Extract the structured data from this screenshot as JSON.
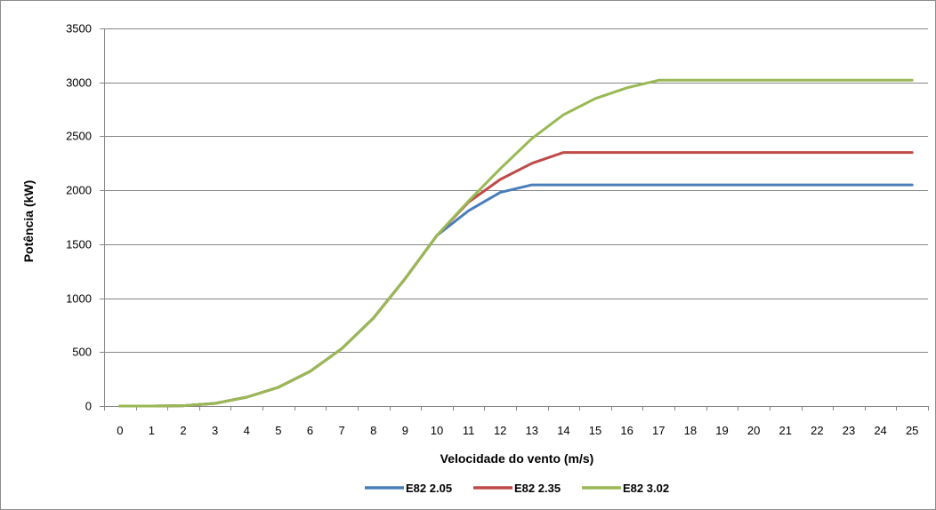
{
  "chart_data": {
    "type": "line",
    "title": "",
    "xlabel": "Velocidade do vento (m/s)",
    "ylabel": "Potência (kW)",
    "x": [
      0,
      1,
      2,
      3,
      4,
      5,
      6,
      7,
      8,
      9,
      10,
      11,
      12,
      13,
      14,
      15,
      16,
      17,
      18,
      19,
      20,
      21,
      22,
      23,
      24,
      25
    ],
    "xtick_labels": [
      "0",
      "1",
      "2",
      "3",
      "4",
      "5",
      "6",
      "7",
      "8",
      "9",
      "10",
      "11",
      "12",
      "13",
      "14",
      "15",
      "16",
      "17",
      "18",
      "19",
      "20",
      "21",
      "22",
      "23",
      "24",
      "25"
    ],
    "ylim": [
      0,
      3500
    ],
    "ytick_labels": [
      "0",
      "500",
      "1000",
      "1500",
      "2000",
      "2500",
      "3000",
      "3500"
    ],
    "grid": true,
    "legend_position": "bottom",
    "series": [
      {
        "name": "E82 2.05",
        "color": "#4a7ebb",
        "values": [
          0,
          0,
          3,
          25,
          82,
          174,
          321,
          532,
          815,
          1180,
          1580,
          1810,
          1980,
          2050,
          2050,
          2050,
          2050,
          2050,
          2050,
          2050,
          2050,
          2050,
          2050,
          2050,
          2050,
          2050
        ]
      },
      {
        "name": "E82 2.35",
        "color": "#be4b48",
        "values": [
          0,
          0,
          3,
          25,
          82,
          174,
          321,
          532,
          815,
          1180,
          1580,
          1890,
          2100,
          2250,
          2350,
          2350,
          2350,
          2350,
          2350,
          2350,
          2350,
          2350,
          2350,
          2350,
          2350,
          2350
        ]
      },
      {
        "name": "E82 3.02",
        "color": "#98b954",
        "values": [
          0,
          0,
          3,
          25,
          82,
          174,
          321,
          532,
          815,
          1180,
          1580,
          1900,
          2200,
          2480,
          2700,
          2850,
          2950,
          3020,
          3020,
          3020,
          3020,
          3020,
          3020,
          3020,
          3020,
          3020
        ]
      }
    ]
  }
}
